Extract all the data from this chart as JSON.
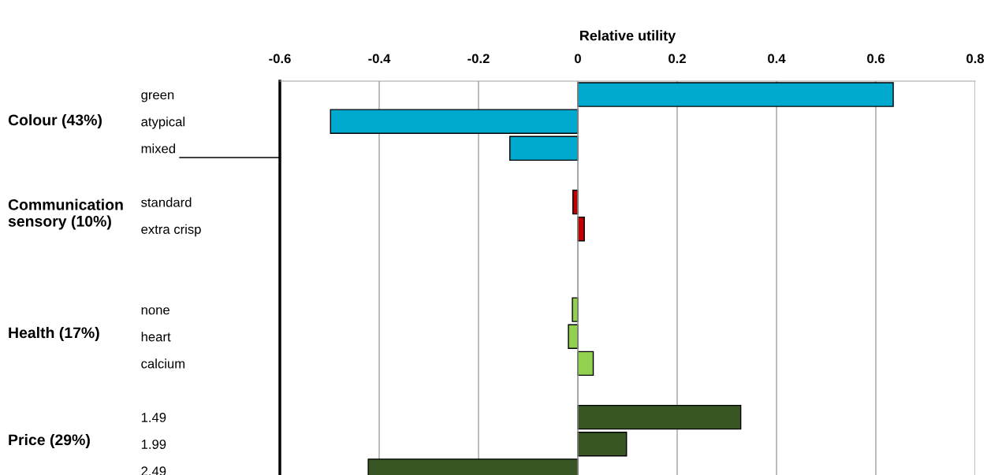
{
  "chart_data": {
    "type": "bar",
    "orientation": "horizontal",
    "xlabel": "Relative utility",
    "categories": [
      "green",
      "atypical",
      "mixed",
      null,
      "standard",
      "extra crisp",
      null,
      null,
      "none",
      "heart",
      "calcium",
      null,
      "1.49",
      "1.99",
      "2.49"
    ],
    "values": [
      0.635,
      -0.498,
      -0.137,
      null,
      -0.01,
      0.013,
      null,
      null,
      -0.011,
      -0.019,
      0.031,
      null,
      0.328,
      0.098,
      -0.422
    ],
    "colors": [
      "#00a9ce",
      "#00a9ce",
      "#00a9ce",
      null,
      "#c00000",
      "#c00000",
      null,
      null,
      "#92d050",
      "#92d050",
      "#92d050",
      null,
      "#375623",
      "#375623",
      "#375623"
    ],
    "xlim": [
      -0.6,
      0.8
    ],
    "xticks": [
      -0.6,
      -0.4,
      -0.2,
      0,
      0.2,
      0.4,
      0.6,
      0.8
    ],
    "grid": "x",
    "annotations": [
      "Colour (43%)",
      "Communication\nsensory (10%)",
      "Health (17%)",
      "Price (29%)"
    ]
  }
}
